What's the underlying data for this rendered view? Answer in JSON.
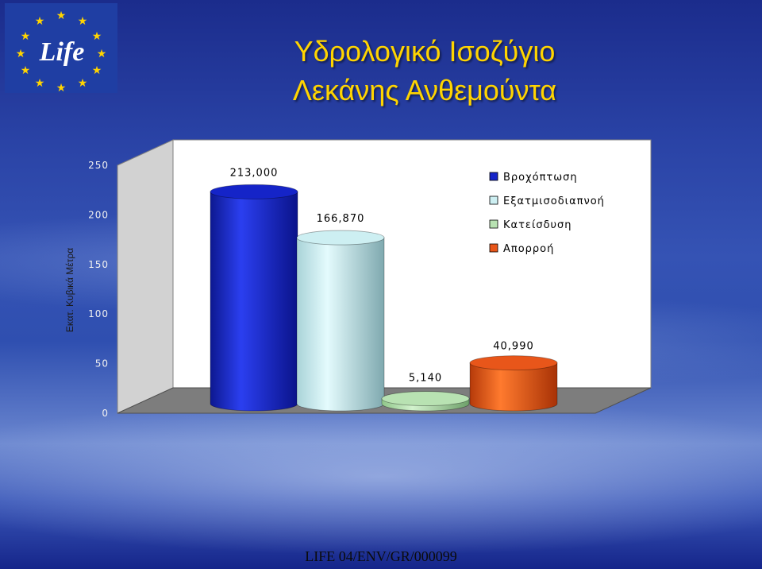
{
  "header": {
    "title_line1": "Υδρολογικό Ισοζύγιο",
    "title_line2": "Λεκάνης Ανθεμούντα",
    "logo_text": "Life"
  },
  "footer": {
    "text": "LIFE 04/ENV/GR/000099"
  },
  "colors": {
    "title": "#ffd400",
    "series": [
      "#1524c8",
      "#cdeff2",
      "#b8e2b2",
      "#e8561a"
    ]
  },
  "chart_data": {
    "type": "bar",
    "title": "",
    "xlabel": "",
    "ylabel": "Εκατ. Κυβικά Μέτρα",
    "ylim": [
      0,
      250
    ],
    "yticks": [
      "0",
      "50",
      "100",
      "150",
      "200",
      "250"
    ],
    "grid": false,
    "legend_position": "top-right",
    "series": [
      {
        "name": "Βροχόπτωση",
        "value": 213.0,
        "label": "213,000",
        "color": "#1524c8"
      },
      {
        "name": "Εξατμισοδιαπνοή",
        "value": 166.87,
        "label": "166,870",
        "color": "#cdeff2"
      },
      {
        "name": "Κατείσδυση",
        "value": 5.14,
        "label": "5,140",
        "color": "#b8e2b2"
      },
      {
        "name": "Απορροή",
        "value": 40.99,
        "label": "40,990",
        "color": "#e8561a"
      }
    ]
  }
}
